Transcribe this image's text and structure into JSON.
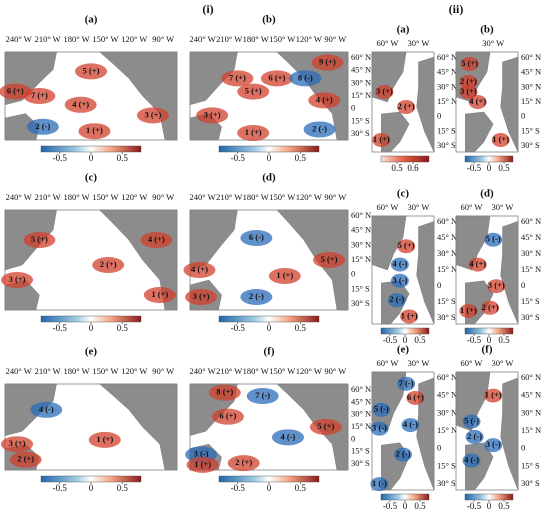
{
  "groups": [
    {
      "label": "(i)",
      "panels": [
        {
          "label": "(a)",
          "lon_labels": [
            "240° W",
            "210° W",
            "180° W",
            "150° W",
            "120° W",
            "90° W"
          ],
          "lat_labels": [],
          "regions": [
            "5 (+)",
            "6 (+)",
            "7 (+)",
            "4 (+)",
            "3 (+)",
            "2 (-)",
            "1 (+)"
          ],
          "colorbar": {
            "clim": [
              -0.8,
              0.8
            ],
            "ticks": [
              -0.5,
              0,
              0.5
            ]
          }
        },
        {
          "label": "(b)",
          "lon_labels": [
            "240° W",
            "210° W",
            "180° W",
            "150° W",
            "120° W",
            "90° W"
          ],
          "lat_labels": [
            "60° N",
            "45° N",
            "30° N",
            "15° N",
            "0",
            "15° S",
            "30° S"
          ],
          "regions": [
            "9 (+)",
            "7 (+)",
            "6 (+)",
            "8 (-)",
            "5 (+)",
            "4 (+)",
            "3 (+)",
            "1 (+)",
            "2 (-)"
          ],
          "colorbar": {
            "clim": [
              -0.8,
              0.8
            ],
            "ticks": [
              -0.5,
              0,
              0.5
            ]
          }
        },
        {
          "label": "(c)",
          "lon_labels": [
            "240° W",
            "210° W",
            "180° W",
            "150° W",
            "120° W",
            "90° W"
          ],
          "lat_labels": [],
          "regions": [
            "5 (+)",
            "4 (+)",
            "2 (+)",
            "3 (+)",
            "1 (+)"
          ],
          "colorbar": {
            "clim": [
              -0.8,
              0.8
            ],
            "ticks": [
              -0.5,
              0,
              0.5
            ]
          }
        },
        {
          "label": "(d)",
          "lon_labels": [
            "240° W",
            "210° W",
            "180° W",
            "150° W",
            "120° W",
            "90° W"
          ],
          "lat_labels": [
            "60° N",
            "45° N",
            "30° N",
            "15° N",
            "0",
            "15° S",
            "30° S"
          ],
          "regions": [
            "6 (-)",
            "5 (+)",
            "4 (+)",
            "1 (+)",
            "3 (+)",
            "2 (-)"
          ],
          "colorbar": {
            "clim": [
              -0.8,
              0.8
            ],
            "ticks": [
              -0.5,
              0,
              0.5
            ]
          }
        },
        {
          "label": "(e)",
          "lon_labels": [
            "240° W",
            "210° W",
            "180° W",
            "150° W",
            "120° W",
            "90° W"
          ],
          "lat_labels": [],
          "regions": [
            "4 (-)",
            "3 (+)",
            "1 (+)",
            "2 (+)"
          ],
          "colorbar": {
            "clim": [
              -0.8,
              0.8
            ],
            "ticks": [
              -0.5,
              0,
              0.5
            ]
          }
        },
        {
          "label": "(f)",
          "lon_labels": [
            "240° W",
            "210° W",
            "180° W",
            "150° W",
            "120° W",
            "90° W"
          ],
          "lat_labels": [
            "60° N",
            "45° N",
            "30° N",
            "15° N",
            "0",
            "15° S",
            "30° S"
          ],
          "regions": [
            "8 (+)",
            "7 (-)",
            "6 (+)",
            "4 (-)",
            "5 (+)",
            "3 (-)",
            "1 (+)",
            "2 (+)"
          ],
          "colorbar": {
            "clim": [
              -0.8,
              0.8
            ],
            "ticks": [
              -0.5,
              0,
              0.5
            ]
          }
        }
      ]
    },
    {
      "label": "(ii)",
      "panels": [
        {
          "label": "(a)",
          "lon_labels": [
            "60° W",
            "30° W"
          ],
          "lat_labels": [
            "60° N",
            "45° N",
            "30° N",
            "15° N",
            "0",
            "15° S",
            "30° S"
          ],
          "regions": [
            "3 (+)",
            "2 (+)",
            "1 (+)"
          ],
          "colorbar": {
            "clim": [
              0.4,
              0.7
            ],
            "ticks": [
              0.5,
              0.6
            ]
          }
        },
        {
          "label": "(b)",
          "lon_labels": [
            "30° W"
          ],
          "lat_labels": [
            "60° N",
            "45° N",
            "30° N",
            "15° N",
            "0",
            "15° S",
            "30° S"
          ],
          "regions": [
            "5 (+)",
            "3 (+)",
            "4 (+)",
            "2 (+)",
            "1 (+)"
          ],
          "colorbar": {
            "clim": [
              -0.8,
              0.8
            ],
            "ticks": [
              -0.5,
              0,
              0.5
            ]
          }
        },
        {
          "label": "(c)",
          "lon_labels": [
            "60° W",
            "30° W"
          ],
          "lat_labels": [
            "60° N",
            "45° N",
            "30° N",
            "15° N",
            "0",
            "15° S",
            "30° S"
          ],
          "regions": [
            "5 (+)",
            "4 (-)",
            "3 (-)",
            "2 (-)",
            "1 (+)"
          ],
          "colorbar": {
            "clim": [
              -0.8,
              0.8
            ],
            "ticks": [
              -0.5,
              0,
              0.5
            ]
          }
        },
        {
          "label": "(d)",
          "lon_labels": [
            "60° W",
            "30° W"
          ],
          "lat_labels": [
            "60° N",
            "45° N",
            "30° N",
            "15° N",
            "0",
            "15° S",
            "30° S"
          ],
          "regions": [
            "5 (-)",
            "4 (+)",
            "3 (+)",
            "1 (+)",
            "2 (+)"
          ],
          "colorbar": {
            "clim": [
              -0.8,
              0.8
            ],
            "ticks": [
              -0.5,
              0,
              0.5
            ]
          }
        },
        {
          "label": "(e)",
          "lon_labels": [
            "60° W",
            "30° W"
          ],
          "lat_labels": [
            "60° N",
            "45° N",
            "30° N",
            "15° N",
            "0",
            "15° S",
            "30° S"
          ],
          "regions": [
            "7 (-)",
            "6 (+)",
            "5 (-)",
            "4 (-)",
            "3 (-)",
            "2 (-)",
            "1 (-)"
          ],
          "colorbar": {
            "clim": [
              -0.8,
              0.8
            ],
            "ticks": [
              -0.5,
              0,
              0.5
            ]
          }
        },
        {
          "label": "(f)",
          "lon_labels": [
            "60° W",
            "30° W"
          ],
          "lat_labels": [
            "60° N",
            "45° N",
            "30° N",
            "15° N",
            "0",
            "15° S",
            "30° S"
          ],
          "regions": [
            "1 (+)",
            "5 (-)",
            "2 (-)",
            "3 (-)",
            "4 (-)"
          ],
          "colorbar": {
            "clim": [
              -0.8,
              0.8
            ],
            "ticks": [
              -0.5,
              0,
              0.5
            ]
          }
        }
      ]
    }
  ]
}
